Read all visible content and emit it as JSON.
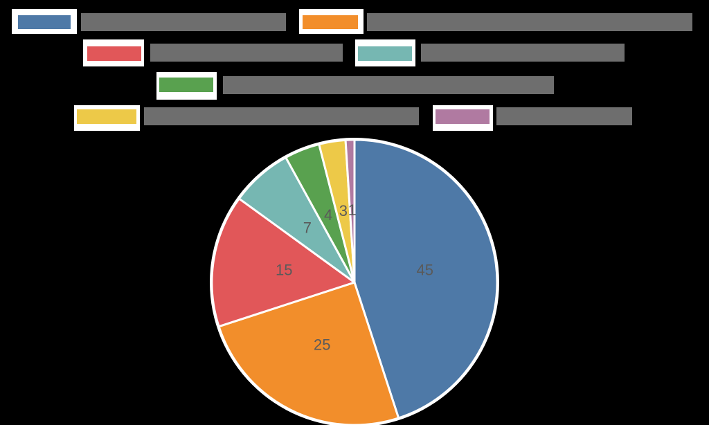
{
  "chart_data": {
    "type": "pie",
    "title": "",
    "start_angle": "12 o'clock",
    "direction": "clockwise",
    "legend_position": "top",
    "legend_labels_redacted": true,
    "slices": [
      {
        "label": "",
        "value": 45,
        "color": "#4E79A7"
      },
      {
        "label": "",
        "value": 25,
        "color": "#F28E2B"
      },
      {
        "label": "",
        "value": 15,
        "color": "#E15759"
      },
      {
        "label": "",
        "value": 7,
        "color": "#76B7B2"
      },
      {
        "label": "",
        "value": 4,
        "color": "#59A14F"
      },
      {
        "label": "",
        "value": 3,
        "color": "#EDC948"
      },
      {
        "label": "",
        "value": 1,
        "color": "#B07AA1"
      }
    ],
    "values": [
      45,
      25,
      15,
      7,
      4,
      3,
      1
    ],
    "data_labels": [
      "45",
      "25",
      "15",
      "7",
      "4",
      "3",
      "1"
    ]
  },
  "legend": {
    "items": [
      {
        "color": "#4E79A7",
        "label": ""
      },
      {
        "color": "#F28E2B",
        "label": ""
      },
      {
        "color": "#E15759",
        "label": ""
      },
      {
        "color": "#76B7B2",
        "label": ""
      },
      {
        "color": "#59A14F",
        "label": ""
      },
      {
        "color": "#EDC948",
        "label": ""
      },
      {
        "color": "#B07AA1",
        "label": ""
      }
    ]
  }
}
